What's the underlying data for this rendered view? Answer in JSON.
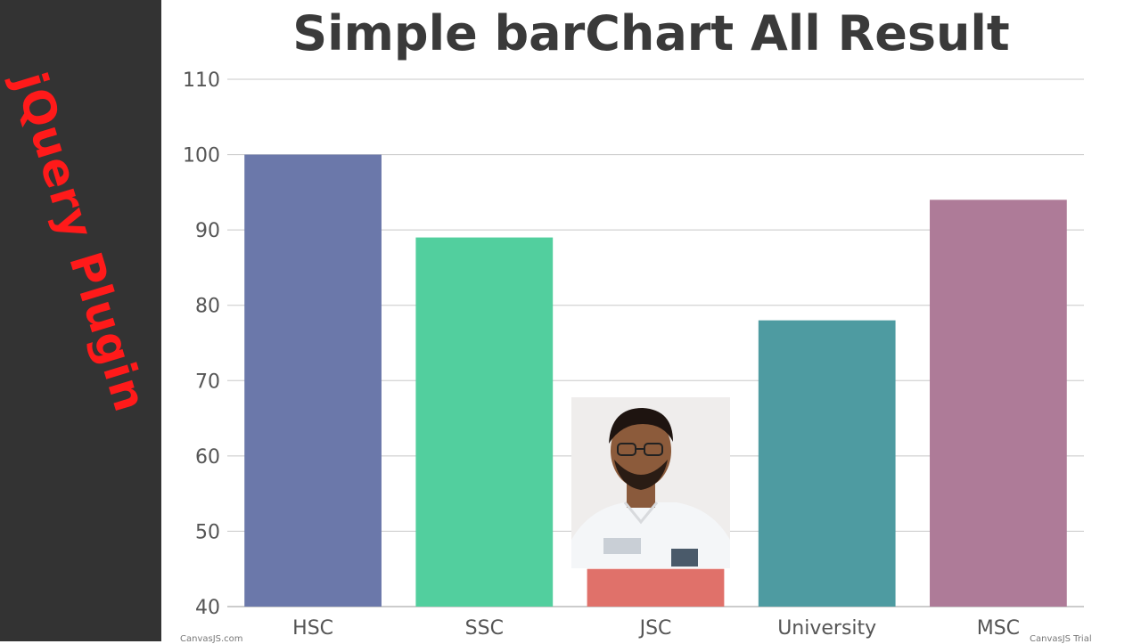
{
  "sidebar": {
    "label": "jQuery Plugin",
    "color": "#ff1a1a"
  },
  "chart_data": {
    "type": "bar",
    "title": "Simple barChart All Result",
    "categories": [
      "HSC",
      "SSC",
      "JSC",
      "University",
      "MSC"
    ],
    "values": [
      100,
      89,
      45,
      78,
      94
    ],
    "colors": [
      "#6b78aa",
      "#52cf9e",
      "#e0716a",
      "#4e9ba1",
      "#ae7b98"
    ],
    "yticks": [
      40,
      50,
      60,
      70,
      80,
      90,
      100,
      110
    ],
    "ylim": [
      40,
      110
    ],
    "xlabel": "",
    "ylabel": "",
    "grid": true
  },
  "credits": {
    "left": "CanvasJS.com",
    "right": "CanvasJS Trial"
  }
}
